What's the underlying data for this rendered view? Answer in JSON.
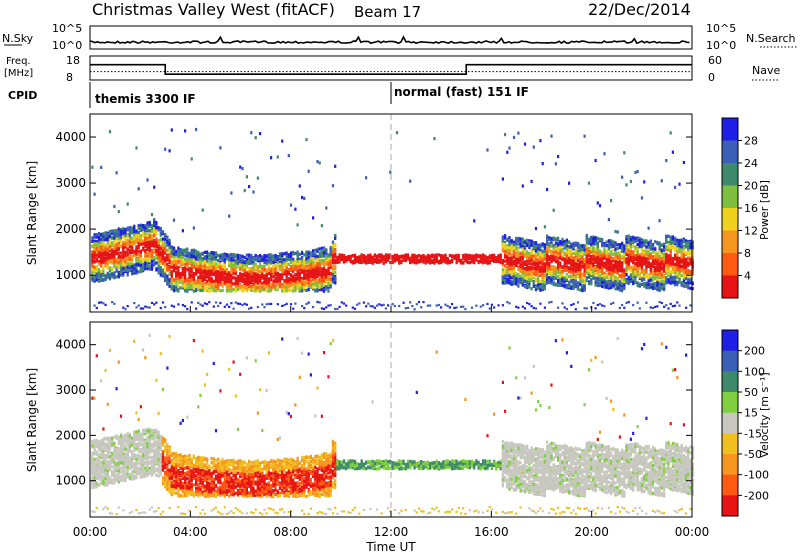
{
  "header": {
    "station": "Christmas Valley West (fitACF)",
    "beam": "Beam 17",
    "date": "22/Dec/2014"
  },
  "chart_data": [
    {
      "type": "line",
      "name": "noise-strip",
      "left_label": "N.Sky",
      "right_label": "N.Search",
      "left_ticks": [
        "10^5",
        "10^0"
      ],
      "right_ticks": [
        "10^5",
        "10^0"
      ]
    },
    {
      "type": "line",
      "name": "frequency-strip",
      "left_label_lines": [
        "Freq.",
        "[MHz]"
      ],
      "right_label": "Nave",
      "left_ticks": [
        "18",
        "8"
      ],
      "right_ticks": [
        "60",
        "0"
      ],
      "freq_steps": [
        {
          "t0": 0,
          "t1": 3.0,
          "mhz": 14.5
        },
        {
          "t0": 3.0,
          "t1": 15.0,
          "mhz": 10.2
        },
        {
          "t0": 15.0,
          "t1": 24.0,
          "mhz": 14.5
        }
      ],
      "nave_level": 20
    },
    {
      "type": "table",
      "name": "cpid-strip",
      "label": "CPID",
      "segments": [
        {
          "t": 0.2,
          "text": "themis 3300 IF"
        },
        {
          "t": 12.0,
          "text": "normal (fast) 151 IF"
        }
      ]
    },
    {
      "type": "heatmap",
      "name": "power-panel",
      "ylabel": "Slant Range [km]",
      "yticks": [
        1000,
        2000,
        3000,
        4000
      ],
      "ylim": [
        200,
        4500
      ],
      "colorbar_label": "Power [dB]",
      "colorbar_ticks": [
        "28",
        "24",
        "20",
        "16",
        "12",
        "8",
        "4"
      ],
      "colors": [
        "#1e1ee6",
        "#3a5fb4",
        "#3f8a6c",
        "#7fbf3f",
        "#f0d21e",
        "#f5961e",
        "#ff5a14",
        "#e61414"
      ]
    },
    {
      "type": "heatmap",
      "name": "velocity-panel",
      "ylabel": "Slant Range [km]",
      "yticks": [
        1000,
        2000,
        3000,
        4000
      ],
      "ylim": [
        200,
        4500
      ],
      "colorbar_label": "Velocity [m s⁻¹]",
      "colorbar_ticks": [
        "200",
        "100",
        "50",
        "15",
        "-15",
        "-50",
        "-100",
        "-200"
      ],
      "colors": [
        "#1e1ee6",
        "#3a5fb4",
        "#3f8a6c",
        "#7fcf3f",
        "#c8c8c0",
        "#f0c01e",
        "#f5961e",
        "#ff5a14",
        "#e61414"
      ],
      "xlabel": "Time UT",
      "xticks": [
        "00:00",
        "04:00",
        "08:00",
        "12:00",
        "16:00",
        "20:00",
        "00:00"
      ]
    }
  ]
}
